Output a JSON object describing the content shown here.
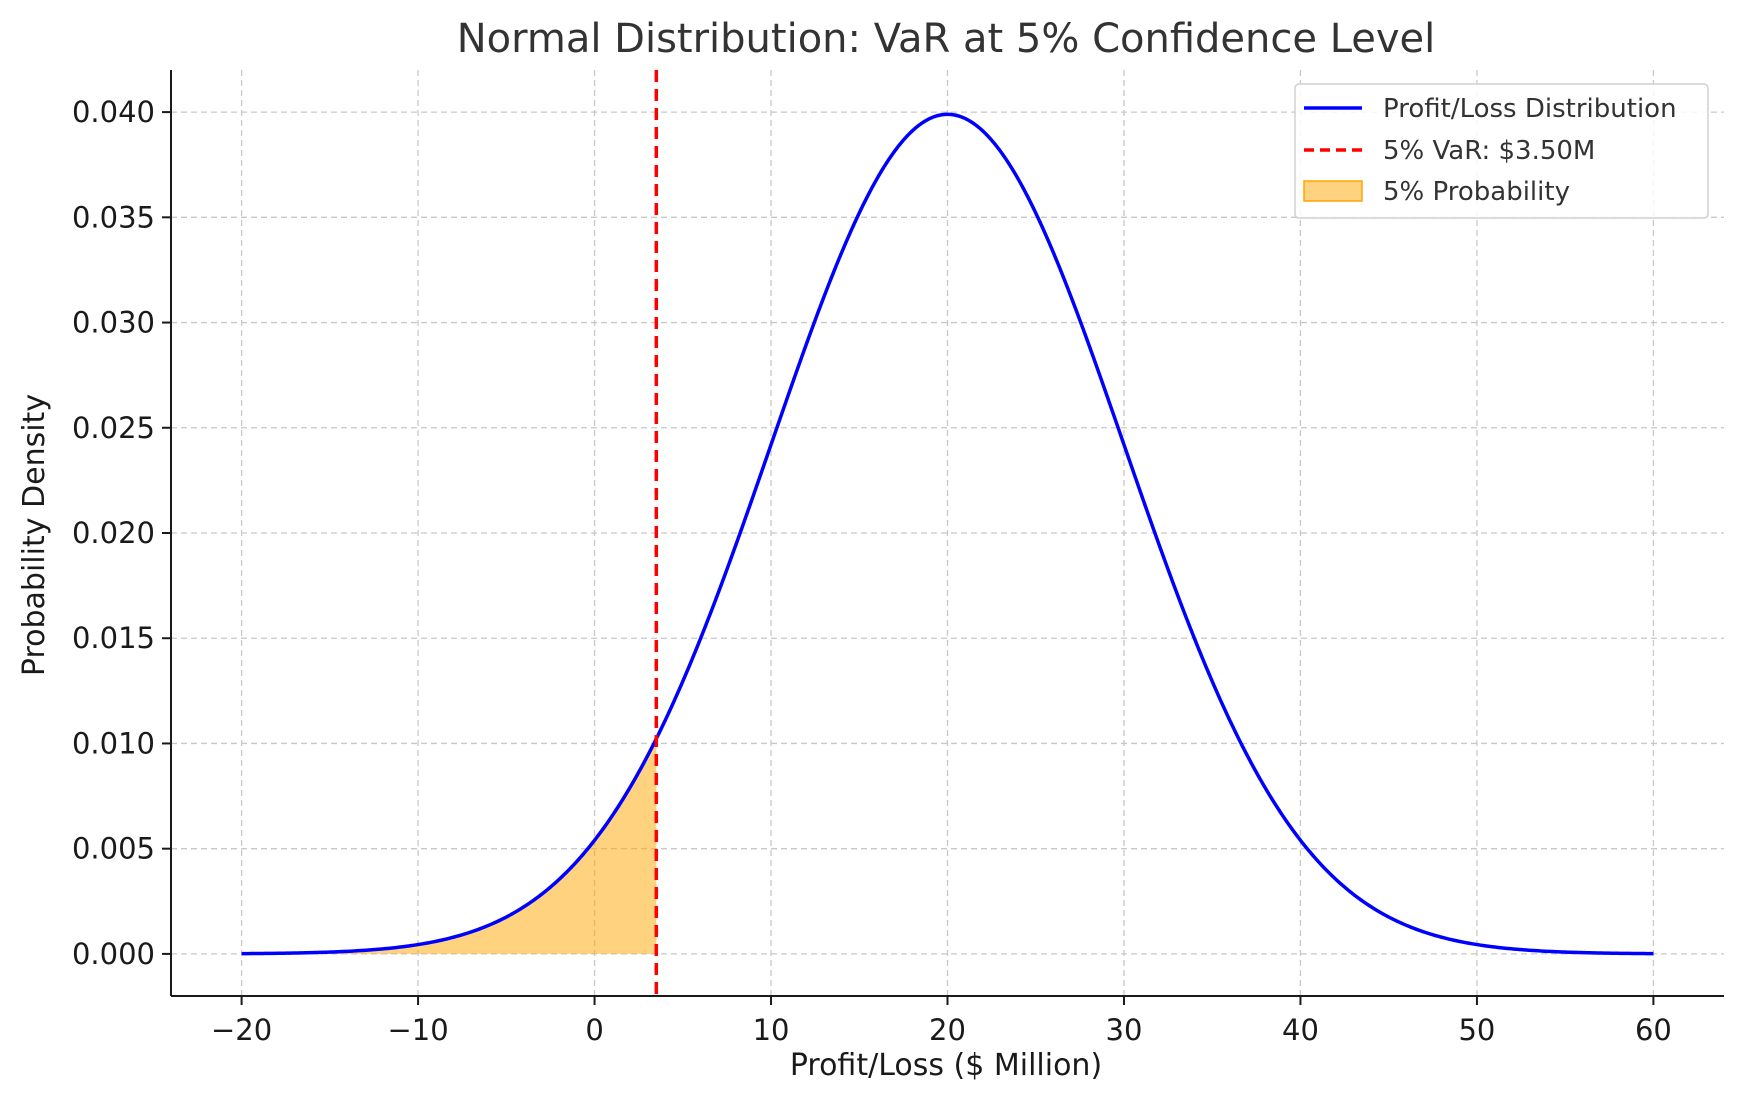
{
  "chart_data": {
    "type": "line",
    "title": "Normal Distribution: VaR at 5% Confidence Level",
    "xlabel": "Profit/Loss ($ Million)",
    "ylabel": "Probability Density",
    "xlim": [
      -24,
      64
    ],
    "ylim": [
      -0.002,
      0.042
    ],
    "x_ticks": [
      -20,
      -10,
      0,
      10,
      20,
      30,
      40,
      50,
      60
    ],
    "x_tick_labels": [
      "−20",
      "−10",
      "0",
      "10",
      "20",
      "30",
      "40",
      "50",
      "60"
    ],
    "y_ticks": [
      0.0,
      0.005,
      0.01,
      0.015,
      0.02,
      0.025,
      0.03,
      0.035,
      0.04
    ],
    "y_tick_labels": [
      "0.000",
      "0.005",
      "0.010",
      "0.015",
      "0.020",
      "0.025",
      "0.030",
      "0.035",
      "0.040"
    ],
    "grid": true,
    "legend_position": "top-right",
    "series": [
      {
        "name": "Profit/Loss Distribution",
        "kind": "normal-pdf-line",
        "mean": 20,
        "std": 10,
        "x_range": [
          -20,
          60
        ],
        "color": "#0000ff"
      }
    ],
    "var_line": {
      "name": "5% VaR: $3.50M",
      "x": 3.5,
      "color": "#ff0000",
      "style": "dashed"
    },
    "shaded_region": {
      "name": "5% Probability",
      "x_range": [
        -20,
        3.5
      ],
      "color": "#ffa500",
      "opacity": 0.5
    }
  }
}
